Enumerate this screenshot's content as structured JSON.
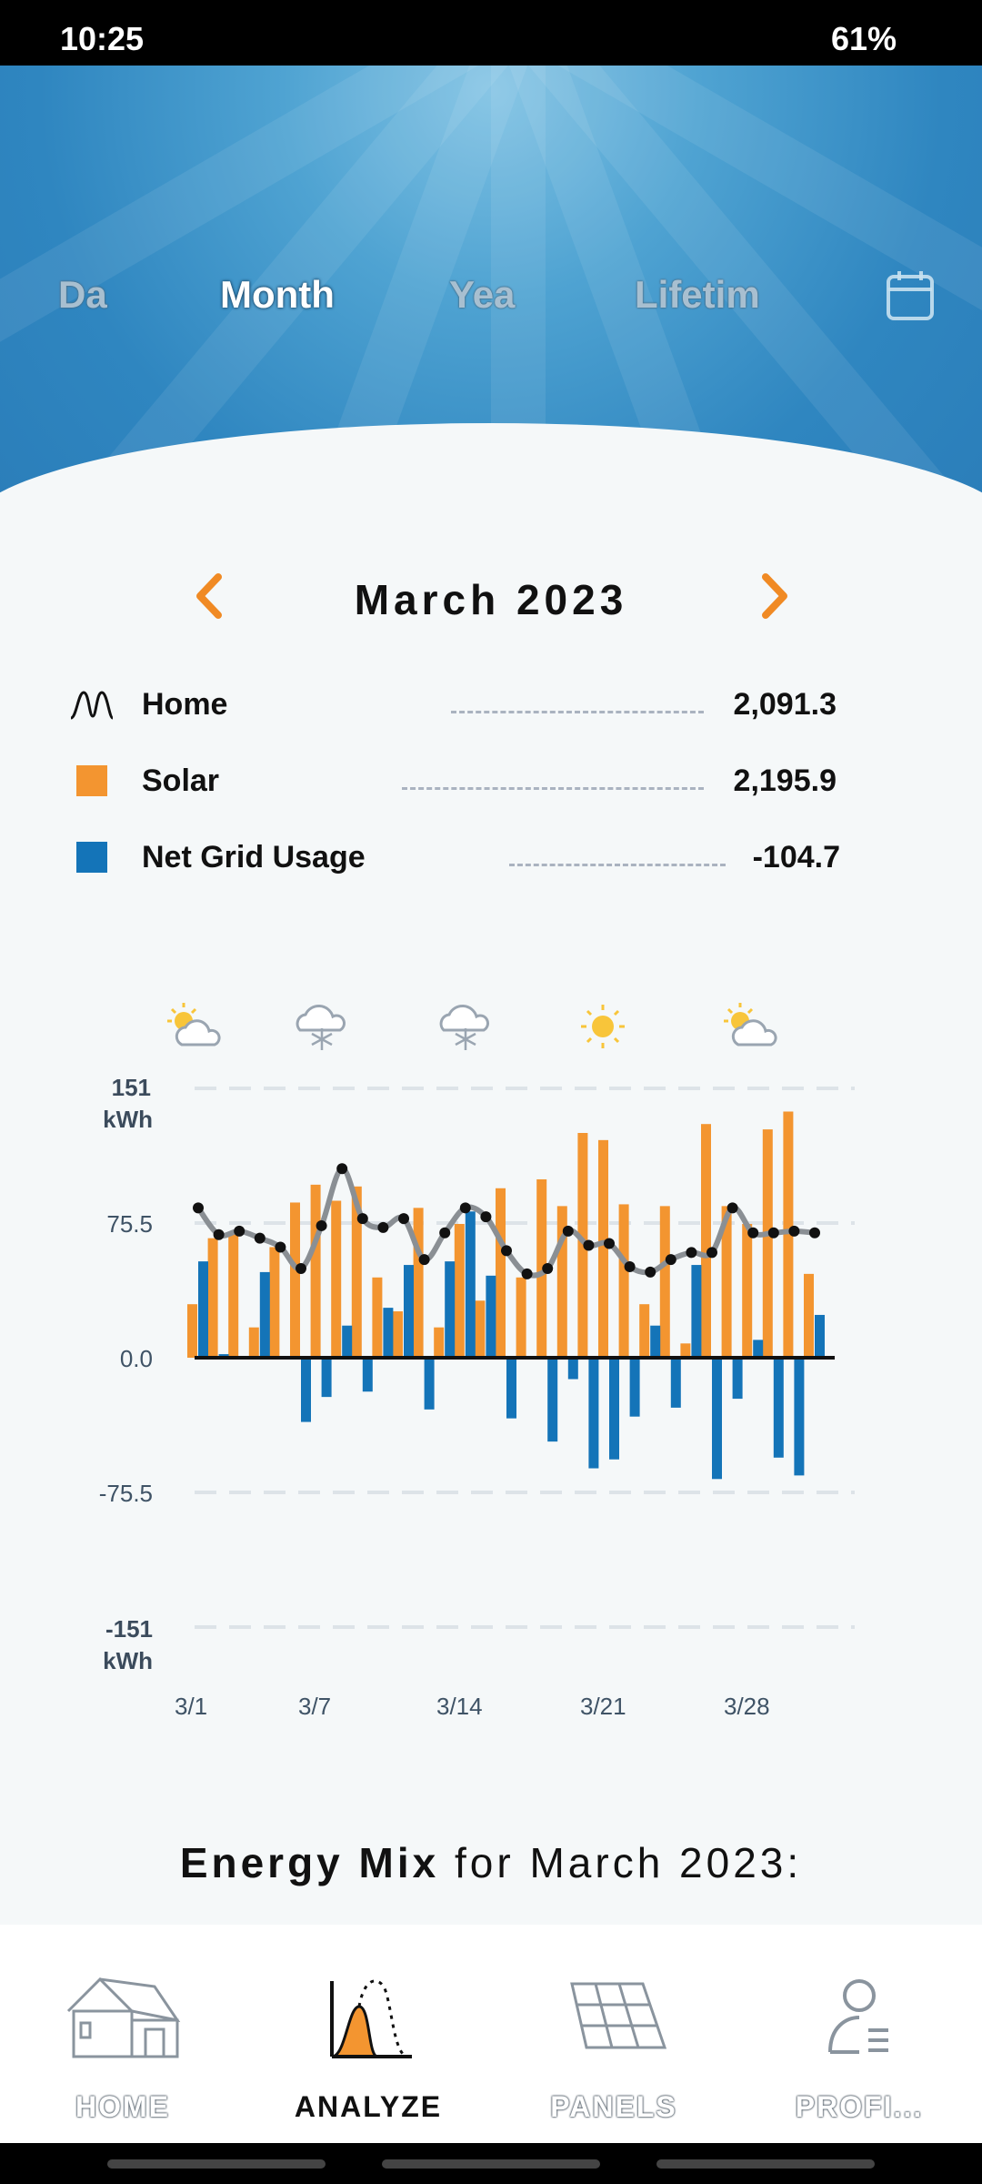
{
  "status_bar": {
    "time": "10:25",
    "battery": "61%"
  },
  "period_tabs": [
    {
      "label": "Da",
      "active": false
    },
    {
      "label": "Month",
      "active": true
    },
    {
      "label": "Yea",
      "active": false
    },
    {
      "label": "Lifetim",
      "active": false
    }
  ],
  "month_nav": {
    "label": "March 2023"
  },
  "legend": [
    {
      "label": "Home",
      "value": "2,091.3",
      "icon": "home-load-line-icon"
    },
    {
      "label": "Solar",
      "value": "2,195.9",
      "icon": "orange-square-icon",
      "color": "#f39530"
    },
    {
      "label": "Net Grid Usage",
      "value": "-104.7",
      "icon": "blue-square-icon",
      "color": "#1474b8"
    }
  ],
  "weather_icons": [
    "partly-cloudy-icon",
    "snow-cloud-icon",
    "snow-cloud-icon",
    "sun-icon",
    "partly-cloudy-icon"
  ],
  "chart_data": {
    "type": "bar",
    "x": [
      "3/1",
      "3/2",
      "3/3",
      "3/4",
      "3/5",
      "3/6",
      "3/7",
      "3/8",
      "3/9",
      "3/10",
      "3/11",
      "3/12",
      "3/13",
      "3/14",
      "3/15",
      "3/16",
      "3/17",
      "3/18",
      "3/19",
      "3/20",
      "3/21",
      "3/22",
      "3/23",
      "3/24",
      "3/25",
      "3/26",
      "3/27",
      "3/28",
      "3/29",
      "3/30",
      "3/31"
    ],
    "x_tick_labels": [
      "3/1",
      "3/7",
      "3/14",
      "3/21",
      "3/28"
    ],
    "y_tick_labels": {
      "top": "151",
      "top_unit": "kWh",
      "upper": "75.5",
      "zero": "0.0",
      "lower": "-75.5",
      "bottom": "-151",
      "bottom_unit": "kWh"
    },
    "ylim": [
      -151,
      151
    ],
    "grid": true,
    "series": [
      {
        "name": "Solar",
        "kind": "bar",
        "color": "#f39530",
        "values": [
          30,
          67,
          70,
          17,
          62,
          87,
          97,
          88,
          96,
          45,
          26,
          84,
          17,
          75,
          32,
          95,
          45,
          100,
          85,
          126,
          122,
          86,
          30,
          85,
          8,
          131,
          85,
          75,
          128,
          138,
          47
        ]
      },
      {
        "name": "Net Grid Usage",
        "kind": "bar",
        "color": "#1474b8",
        "values": [
          54,
          2,
          0,
          48,
          0,
          -36,
          -22,
          18,
          -19,
          28,
          52,
          -29,
          54,
          82,
          46,
          -34,
          0,
          -47,
          -12,
          -62,
          -57,
          -33,
          18,
          -28,
          52,
          -68,
          -23,
          10,
          -56,
          -66,
          24
        ]
      },
      {
        "name": "Home",
        "kind": "line",
        "color": "#444444",
        "values": [
          84,
          69,
          71,
          67,
          62,
          50,
          74,
          106,
          78,
          73,
          78,
          55,
          70,
          84,
          79,
          60,
          47,
          50,
          71,
          63,
          64,
          51,
          48,
          55,
          59,
          59,
          84,
          70,
          70,
          71,
          70
        ]
      }
    ]
  },
  "energy_mix": {
    "bold": "Energy Mix",
    "rest": " for March 2023:"
  },
  "bottom_nav": [
    {
      "label": "HOME",
      "icon": "house-icon",
      "active": false
    },
    {
      "label": "ANALYZE",
      "icon": "analyze-chart-icon",
      "active": true
    },
    {
      "label": "PANELS",
      "icon": "solar-panel-icon",
      "active": false
    },
    {
      "label": "PROFI...",
      "icon": "profile-icon",
      "active": false
    }
  ]
}
